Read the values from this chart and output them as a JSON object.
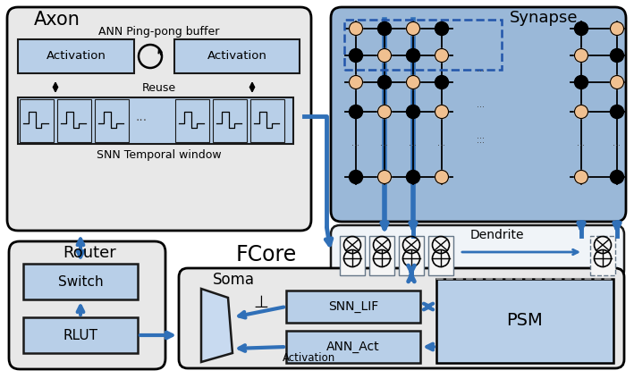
{
  "bg_color": "#ffffff",
  "lb": "#b8cfe8",
  "lb2": "#c8daf0",
  "be": "#1a1a1a",
  "ba": "#3070b8",
  "blk": "#000000",
  "synbg": "#9ab8d8",
  "peach": "#f0c090",
  "gray_bg": "#e8e8e8",
  "router_bg": "#e0e8f0",
  "title_fcore": "FCore",
  "title_axon": "Axon",
  "title_synapse": "Synapse",
  "title_dendrite": "Dendrite",
  "title_soma": "Soma",
  "title_router": "Router"
}
